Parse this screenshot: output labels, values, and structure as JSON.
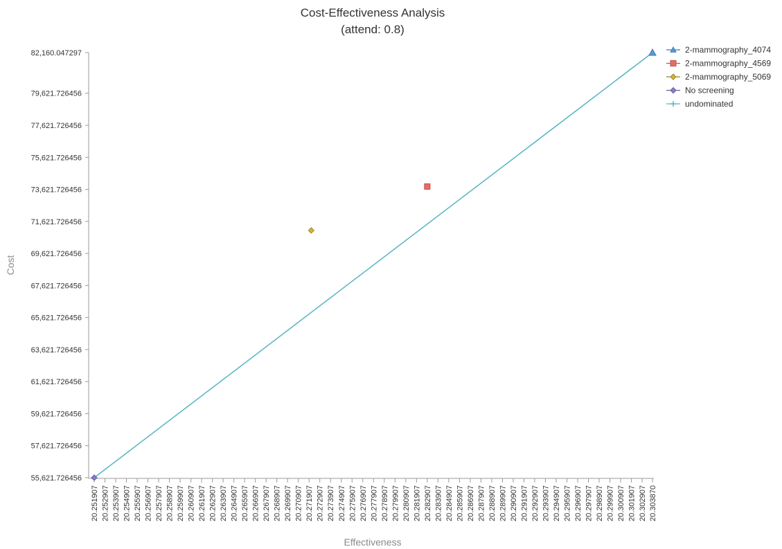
{
  "chart_data": {
    "type": "scatter",
    "title": "Cost-Effectiveness Analysis",
    "subtitle": "(attend: 0.8)",
    "xlabel": "Effectiveness",
    "ylabel": "Cost",
    "xlim": [
      20.251907,
      20.30387
    ],
    "ylim": [
      55621.726456,
      82160.047297
    ],
    "x_ticks": [
      20.251907,
      20.252907,
      20.253907,
      20.254907,
      20.255907,
      20.256907,
      20.257907,
      20.258907,
      20.259907,
      20.260907,
      20.261907,
      20.262907,
      20.263907,
      20.264907,
      20.265907,
      20.266907,
      20.267907,
      20.268907,
      20.269907,
      20.270907,
      20.271907,
      20.272907,
      20.273907,
      20.274907,
      20.275907,
      20.276907,
      20.277907,
      20.278907,
      20.279907,
      20.280907,
      20.281907,
      20.282907,
      20.283907,
      20.284907,
      20.285907,
      20.286907,
      20.287907,
      20.288907,
      20.289907,
      20.290907,
      20.291907,
      20.292907,
      20.293907,
      20.294907,
      20.295907,
      20.296907,
      20.297907,
      20.298907,
      20.299907,
      20.300907,
      20.301907,
      20.302907,
      20.30387
    ],
    "x_tick_labels": [
      "20.251907",
      "20.252907",
      "20.253907",
      "20.254907",
      "20.255907",
      "20.256907",
      "20.257907",
      "20.258907",
      "20.259907",
      "20.260907",
      "20.261907",
      "20.262907",
      "20.263907",
      "20.264907",
      "20.265907",
      "20.266907",
      "20.267907",
      "20.268907",
      "20.269907",
      "20.270907",
      "20.271907",
      "20.272907",
      "20.273907",
      "20.274907",
      "20.275907",
      "20.276907",
      "20.277907",
      "20.278907",
      "20.279907",
      "20.280907",
      "20.281907",
      "20.282907",
      "20.283907",
      "20.284907",
      "20.285907",
      "20.286907",
      "20.287907",
      "20.288907",
      "20.289907",
      "20.290907",
      "20.291907",
      "20.292907",
      "20.293907",
      "20.294907",
      "20.295907",
      "20.296907",
      "20.297907",
      "20.298907",
      "20.299907",
      "20.300907",
      "20.301907",
      "20.302907",
      "20.303870"
    ],
    "y_ticks": [
      55621.726456,
      57621.726456,
      59621.726456,
      61621.726456,
      63621.726456,
      65621.726456,
      67621.726456,
      69621.726456,
      71621.726456,
      73621.726456,
      75621.726456,
      77621.726456,
      79621.726456,
      82160.047297
    ],
    "y_tick_labels": [
      "55,621.726456",
      "57,621.726456",
      "59,621.726456",
      "61,621.726456",
      "63,621.726456",
      "65,621.726456",
      "67,621.726456",
      "69,621.726456",
      "71,621.726456",
      "73,621.726456",
      "75,621.726456",
      "77,621.726456",
      "79,621.726456",
      "82,160.047297"
    ],
    "series": [
      {
        "name": "2-mammography_4074",
        "marker": "triangle",
        "color": "#5b9bd5",
        "stroke": "#3a78b8",
        "points": [
          {
            "x": 20.30387,
            "y": 82160.047297
          }
        ]
      },
      {
        "name": "2-mammography_4569",
        "marker": "square",
        "color": "#ea6b66",
        "stroke": "#c0504d",
        "points": [
          {
            "x": 20.282907,
            "y": 73800
          }
        ]
      },
      {
        "name": "2-mammography_5069",
        "marker": "diamond",
        "color": "#d4b53a",
        "stroke": "#9c8420",
        "points": [
          {
            "x": 20.272107,
            "y": 71060
          }
        ]
      },
      {
        "name": "No screening",
        "marker": "diamond",
        "color": "#8e7cc3",
        "stroke": "#6a5aa3",
        "points": [
          {
            "x": 20.251907,
            "y": 55621.726456
          }
        ]
      },
      {
        "name": "undominated",
        "marker": "plus",
        "color": "#56b4c4",
        "stroke": "#56b4c4",
        "line": true,
        "points": [
          {
            "x": 20.251907,
            "y": 55621.726456
          },
          {
            "x": 20.30387,
            "y": 82160.047297
          }
        ]
      }
    ],
    "legend_position": "top-right",
    "grid": false
  }
}
